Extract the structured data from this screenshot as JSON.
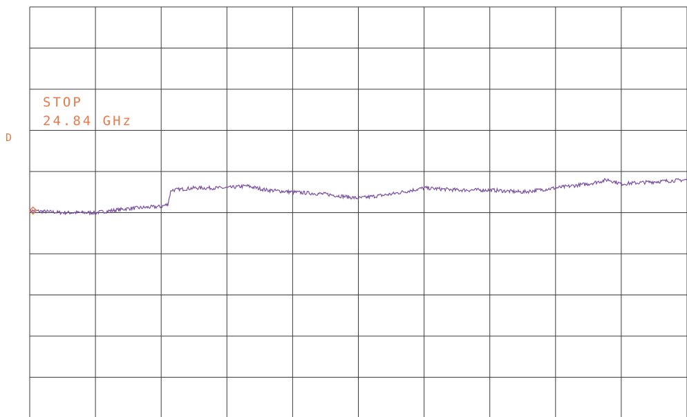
{
  "colors": {
    "grid": "#3a3a3a",
    "trace": "#7a4f9e",
    "annotation": "#e8794a",
    "background": "#ffffff"
  },
  "annotations": {
    "stop_label": "STOP",
    "stop_freq": "24.84 GHz",
    "channel_letter": "D"
  },
  "chart_data": {
    "type": "line",
    "title": "",
    "xlabel": "",
    "ylabel": "",
    "grid": true,
    "x_divisions": 10,
    "y_divisions": 10,
    "xlim": [
      0,
      10
    ],
    "ylim": [
      0,
      10
    ],
    "reference_marker": {
      "name": "reference-marker",
      "x": 0.05,
      "y": 5.05
    },
    "series": [
      {
        "values_x": [
          0.0,
          0.5,
          1.0,
          1.5,
          2.0,
          2.1,
          2.15,
          2.2,
          2.5,
          3.0,
          3.3,
          3.6,
          4.0,
          4.5,
          5.0,
          5.5,
          6.0,
          6.5,
          7.0,
          7.5,
          8.0,
          8.5,
          8.8,
          9.0,
          9.5,
          10.0
        ],
        "values_y": [
          5.05,
          5.0,
          5.0,
          5.1,
          5.15,
          5.2,
          5.55,
          5.55,
          5.6,
          5.6,
          5.65,
          5.55,
          5.5,
          5.45,
          5.35,
          5.45,
          5.6,
          5.55,
          5.55,
          5.5,
          5.6,
          5.7,
          5.8,
          5.7,
          5.75,
          5.8
        ]
      }
    ]
  }
}
